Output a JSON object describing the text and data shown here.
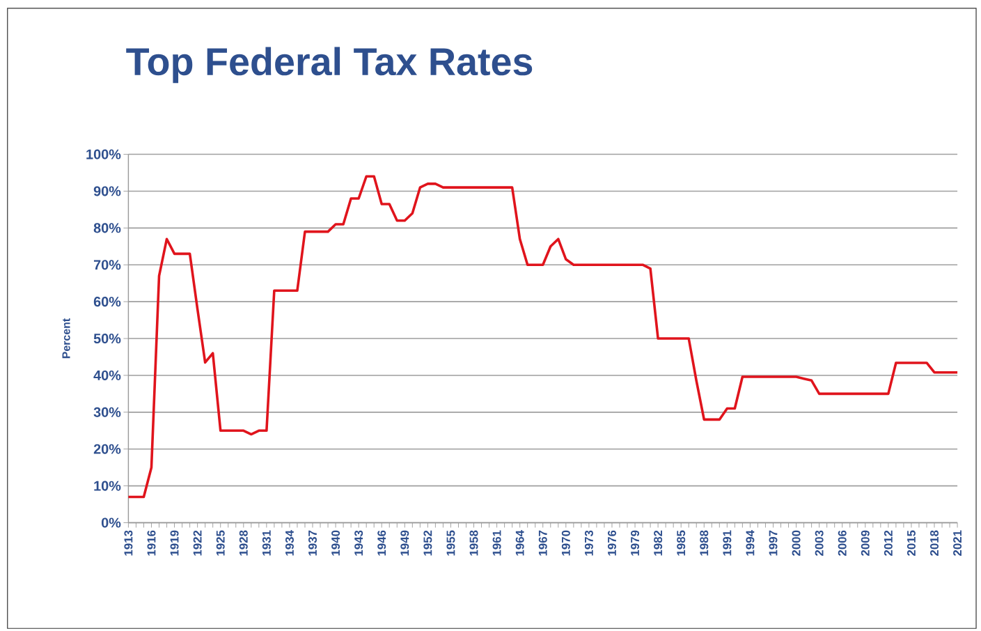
{
  "chart_data": {
    "type": "line",
    "title": "Top Federal Tax Rates",
    "ylabel": "Percent",
    "x": [
      1913,
      1914,
      1915,
      1916,
      1917,
      1918,
      1919,
      1920,
      1921,
      1922,
      1923,
      1924,
      1925,
      1926,
      1927,
      1928,
      1929,
      1930,
      1931,
      1932,
      1933,
      1934,
      1935,
      1936,
      1937,
      1938,
      1939,
      1940,
      1941,
      1942,
      1943,
      1944,
      1945,
      1946,
      1947,
      1948,
      1949,
      1950,
      1951,
      1952,
      1953,
      1954,
      1955,
      1956,
      1957,
      1958,
      1959,
      1960,
      1961,
      1962,
      1963,
      1964,
      1965,
      1966,
      1967,
      1968,
      1969,
      1970,
      1971,
      1972,
      1973,
      1974,
      1975,
      1976,
      1977,
      1978,
      1979,
      1980,
      1981,
      1982,
      1983,
      1984,
      1985,
      1986,
      1987,
      1988,
      1989,
      1990,
      1991,
      1992,
      1993,
      1994,
      1995,
      1996,
      1997,
      1998,
      1999,
      2000,
      2001,
      2002,
      2003,
      2004,
      2005,
      2006,
      2007,
      2008,
      2009,
      2010,
      2011,
      2012,
      2013,
      2014,
      2015,
      2016,
      2017,
      2018,
      2019,
      2020,
      2021
    ],
    "series": [
      {
        "color": "#e0141c",
        "values": [
          7,
          7,
          7,
          15,
          67,
          77,
          73,
          73,
          73,
          58,
          43.5,
          46,
          25,
          25,
          25,
          25,
          24,
          25,
          25,
          63,
          63,
          63,
          63,
          79,
          79,
          79,
          79,
          81,
          81,
          88,
          88,
          94,
          94,
          86.5,
          86.5,
          82,
          82,
          84,
          91,
          92,
          92,
          91,
          91,
          91,
          91,
          91,
          91,
          91,
          91,
          91,
          91,
          77,
          70,
          70,
          70,
          75,
          77,
          71.5,
          70,
          70,
          70,
          70,
          70,
          70,
          70,
          70,
          70,
          70,
          69,
          50,
          50,
          50,
          50,
          50,
          38.5,
          28,
          28,
          28,
          31,
          31,
          39.6,
          39.6,
          39.6,
          39.6,
          39.6,
          39.6,
          39.6,
          39.6,
          39.1,
          38.6,
          35,
          35,
          35,
          35,
          35,
          35,
          35,
          35,
          35,
          35,
          43.4,
          43.4,
          43.4,
          43.4,
          43.4,
          40.8,
          40.8,
          40.8,
          40.8
        ]
      }
    ],
    "xlim": [
      1913,
      2021
    ],
    "xticks": [
      1913,
      1916,
      1919,
      1922,
      1925,
      1928,
      1931,
      1934,
      1937,
      1940,
      1943,
      1946,
      1949,
      1952,
      1955,
      1958,
      1961,
      1964,
      1967,
      1970,
      1973,
      1976,
      1979,
      1982,
      1985,
      1988,
      1991,
      1994,
      1997,
      2000,
      2003,
      2006,
      2009,
      2012,
      2015,
      2018,
      2021
    ],
    "ylim": [
      0,
      100
    ],
    "yticks": [
      {
        "value": 0,
        "label": "0%"
      },
      {
        "value": 10,
        "label": "10%"
      },
      {
        "value": 20,
        "label": "20%"
      },
      {
        "value": 30,
        "label": "30%"
      },
      {
        "value": 40,
        "label": "40%"
      },
      {
        "value": 50,
        "label": "50%"
      },
      {
        "value": 60,
        "label": "60%"
      },
      {
        "value": 70,
        "label": "70%"
      },
      {
        "value": 80,
        "label": "80%"
      },
      {
        "value": 90,
        "label": "90%"
      },
      {
        "value": 100,
        "label": "100%"
      }
    ],
    "grid": "y"
  }
}
